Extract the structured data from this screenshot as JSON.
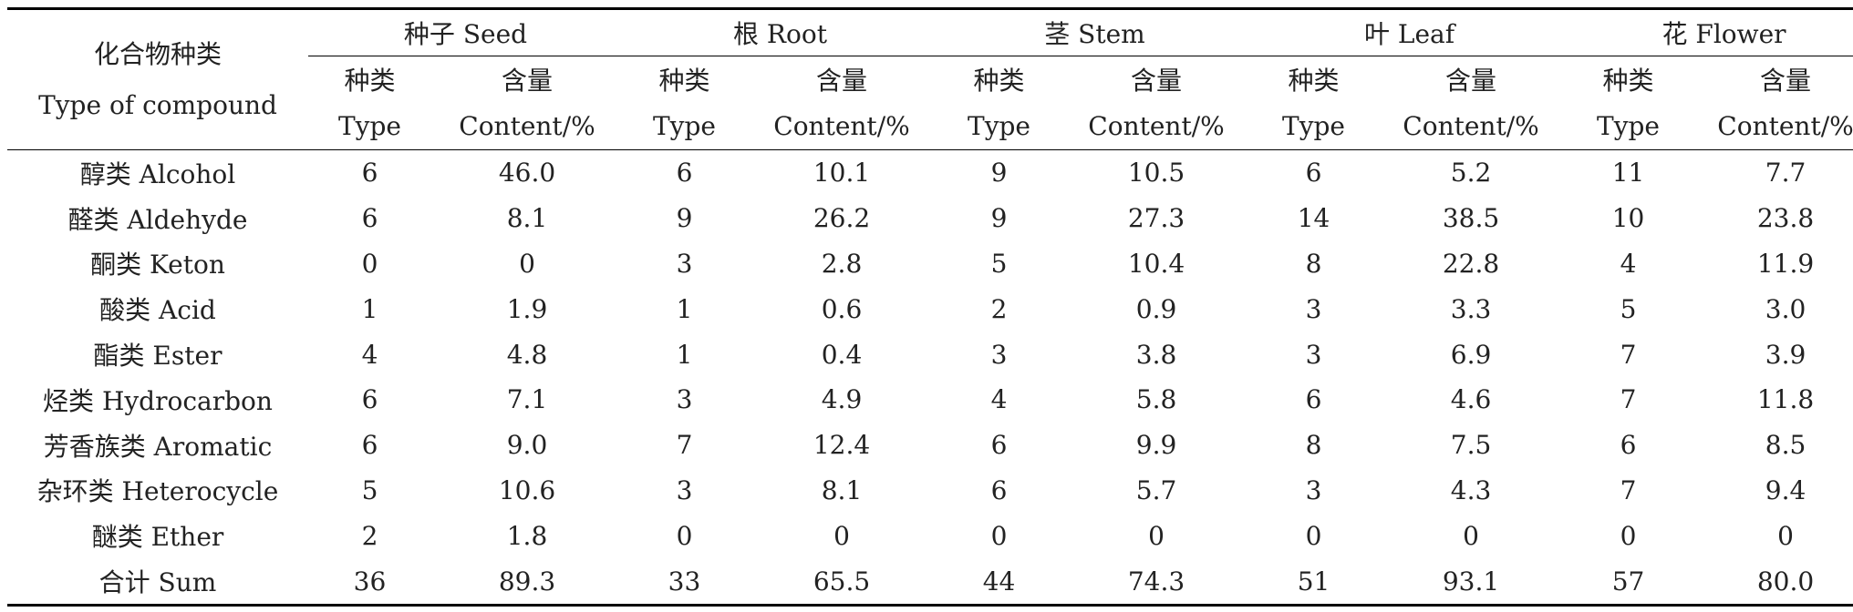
{
  "table": {
    "corner_cn": "化合物种类",
    "corner_en": "Type of compound",
    "groups": [
      {
        "label": "种子 Seed"
      },
      {
        "label": "根 Root"
      },
      {
        "label": "茎 Stem"
      },
      {
        "label": "叶 Leaf"
      },
      {
        "label": "花 Flower"
      }
    ],
    "sub_cn": {
      "type": "种类",
      "content": "含量"
    },
    "sub_en": {
      "type": "Type",
      "content": "Content/%"
    },
    "rows": [
      {
        "label": "醇类 Alcohol",
        "cells": [
          "6",
          "46.0",
          "6",
          "10.1",
          "9",
          "10.5",
          "6",
          "5.2",
          "11",
          "7.7"
        ]
      },
      {
        "label": "醛类 Aldehyde",
        "cells": [
          "6",
          "8.1",
          "9",
          "26.2",
          "9",
          "27.3",
          "14",
          "38.5",
          "10",
          "23.8"
        ]
      },
      {
        "label": "酮类 Keton",
        "cells": [
          "0",
          "0",
          "3",
          "2.8",
          "5",
          "10.4",
          "8",
          "22.8",
          "4",
          "11.9"
        ]
      },
      {
        "label": "酸类 Acid",
        "cells": [
          "1",
          "1.9",
          "1",
          "0.6",
          "2",
          "0.9",
          "3",
          "3.3",
          "5",
          "3.0"
        ]
      },
      {
        "label": "酯类 Ester",
        "cells": [
          "4",
          "4.8",
          "1",
          "0.4",
          "3",
          "3.8",
          "3",
          "6.9",
          "7",
          "3.9"
        ]
      },
      {
        "label": "烃类 Hydrocarbon",
        "cells": [
          "6",
          "7.1",
          "3",
          "4.9",
          "4",
          "5.8",
          "6",
          "4.6",
          "7",
          "11.8"
        ]
      },
      {
        "label": "芳香族类 Aromatic",
        "cells": [
          "6",
          "9.0",
          "7",
          "12.4",
          "6",
          "9.9",
          "8",
          "7.5",
          "6",
          "8.5"
        ]
      },
      {
        "label": "杂环类 Heterocycle",
        "cells": [
          "5",
          "10.6",
          "3",
          "8.1",
          "6",
          "5.7",
          "3",
          "4.3",
          "7",
          "9.4"
        ]
      },
      {
        "label": "醚类 Ether",
        "cells": [
          "2",
          "1.8",
          "0",
          "0",
          "0",
          "0",
          "0",
          "0",
          "0",
          "0"
        ]
      },
      {
        "label": "合计 Sum",
        "cells": [
          "36",
          "89.3",
          "33",
          "65.5",
          "44",
          "74.3",
          "51",
          "93.1",
          "57",
          "80.0"
        ]
      }
    ]
  }
}
